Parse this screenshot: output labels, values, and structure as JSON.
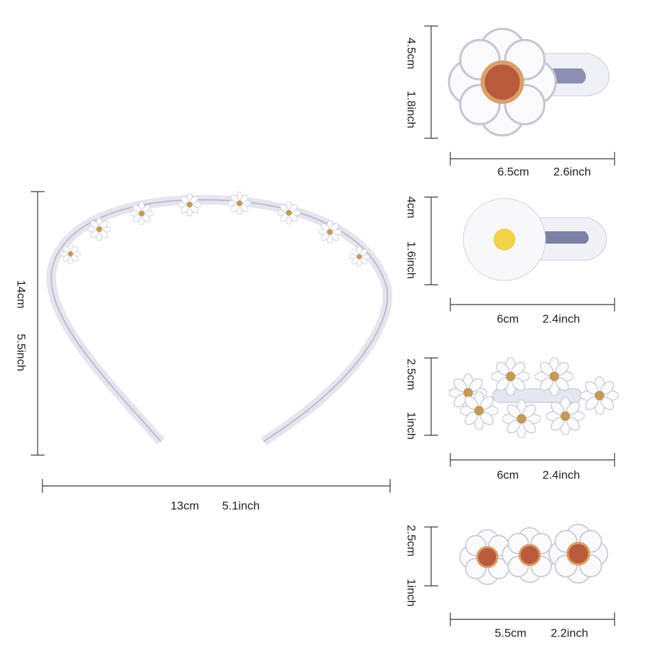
{
  "headband": {
    "height": {
      "cm": "14cm",
      "inch": "5.5inch"
    },
    "width": {
      "cm": "13cm",
      "inch": "5.1inch"
    }
  },
  "clips": [
    {
      "height": {
        "cm": "4.5cm",
        "inch": "1.8inch"
      },
      "width": {
        "cm": "6.5cm",
        "inch": "2.6inch"
      }
    },
    {
      "height": {
        "cm": "4cm",
        "inch": "1.6inch"
      },
      "width": {
        "cm": "6cm",
        "inch": "2.4inch"
      }
    },
    {
      "height": {
        "cm": "2.5cm",
        "inch": "1inch"
      },
      "width": {
        "cm": "6cm",
        "inch": "2.4inch"
      }
    },
    {
      "height": {
        "cm": "2.5cm",
        "inch": "1inch"
      },
      "width": {
        "cm": "5.5cm",
        "inch": "2.2inch"
      }
    }
  ]
}
